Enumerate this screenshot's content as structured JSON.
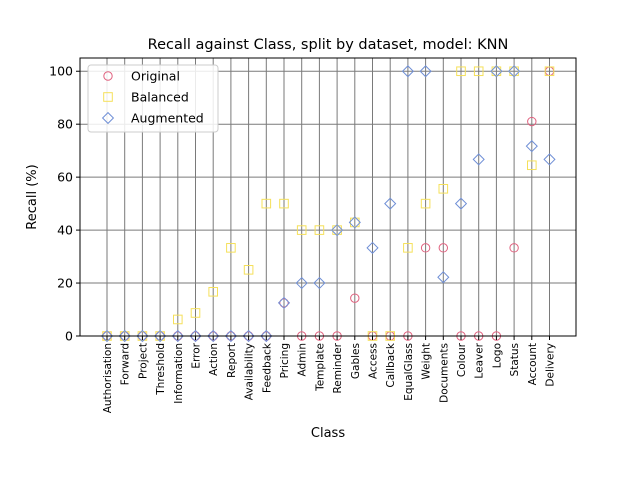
{
  "chart_data": {
    "type": "scatter",
    "title": "Recall against Class, split by dataset, model: KNN",
    "xlabel": "Class",
    "ylabel": "Recall (%)",
    "ylim": [
      0,
      105
    ],
    "yticks": [
      0,
      20,
      40,
      60,
      80,
      100
    ],
    "grid": true,
    "legend_position": "top-left",
    "categories": [
      "Authorisation",
      "Forward",
      "Project",
      "Threshold",
      "Information",
      "Error",
      "Action",
      "Report",
      "Availability",
      "Feedback",
      "Pricing",
      "Admin",
      "Template",
      "Reminder",
      "Gables",
      "Access",
      "Callback",
      "EqualGlass",
      "Weight",
      "Documents",
      "Colour",
      "Leaver",
      "Logo",
      "Status",
      "Account",
      "Delivery"
    ],
    "series": [
      {
        "name": "Original",
        "marker": "circle",
        "color": "#e0607e",
        "values": [
          0,
          0,
          0,
          0,
          0,
          0,
          0,
          0,
          0,
          0,
          12.5,
          0,
          0,
          0,
          14.3,
          0,
          0,
          0,
          33.3,
          33.3,
          0,
          0,
          0,
          33.3,
          81,
          100
        ]
      },
      {
        "name": "Balanced",
        "marker": "square",
        "color": "#f5e05a",
        "values": [
          0,
          0,
          0,
          0,
          6.25,
          8.7,
          16.7,
          33.3,
          25,
          50,
          50,
          40,
          40,
          40,
          42.9,
          0,
          0,
          33.3,
          50,
          55.6,
          100,
          100,
          100,
          100,
          64.5,
          100
        ]
      },
      {
        "name": "Augmented",
        "marker": "diamond",
        "color": "#6f8fd6",
        "values": [
          0,
          0,
          0,
          0,
          0,
          0,
          0,
          0,
          0,
          0,
          12.5,
          20,
          20,
          40,
          42.9,
          33.3,
          50,
          100,
          100,
          22.2,
          50,
          66.7,
          100,
          100,
          71.7,
          66.7
        ]
      }
    ]
  }
}
